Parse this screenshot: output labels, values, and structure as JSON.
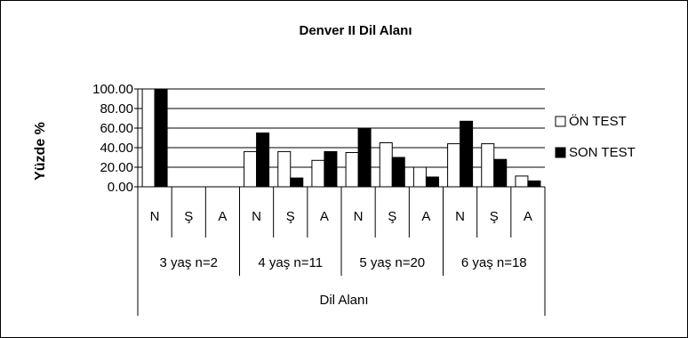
{
  "chart_data": {
    "type": "bar",
    "title": "Denver II Dil Alanı",
    "ylabel": "Yüzde %",
    "xlabel": "Dil Alanı",
    "ylim": [
      0,
      100
    ],
    "ytick_labels": [
      "0.00",
      "20.00",
      "40.00",
      "60.00",
      "80.00",
      "100.00"
    ],
    "groups": [
      {
        "label": "3 yaş n=2",
        "categories": [
          "N",
          "Ş",
          "A"
        ]
      },
      {
        "label": "4 yaş n=11",
        "categories": [
          "N",
          "Ş",
          "A"
        ]
      },
      {
        "label": "5 yaş n=20",
        "categories": [
          "N",
          "Ş",
          "A"
        ]
      },
      {
        "label": "6 yaş n=18",
        "categories": [
          "N",
          "Ş",
          "A"
        ]
      }
    ],
    "series": [
      {
        "name": "ÖN TEST",
        "color": "#ffffff",
        "values": [
          100,
          0,
          0,
          36,
          36,
          27,
          35,
          45,
          20,
          44,
          44,
          11
        ]
      },
      {
        "name": "SON TEST",
        "color": "#000000",
        "values": [
          100,
          0,
          0,
          55,
          9,
          36,
          60,
          30,
          10,
          67,
          28,
          6
        ]
      }
    ],
    "legend_position": "right",
    "grid": true
  }
}
